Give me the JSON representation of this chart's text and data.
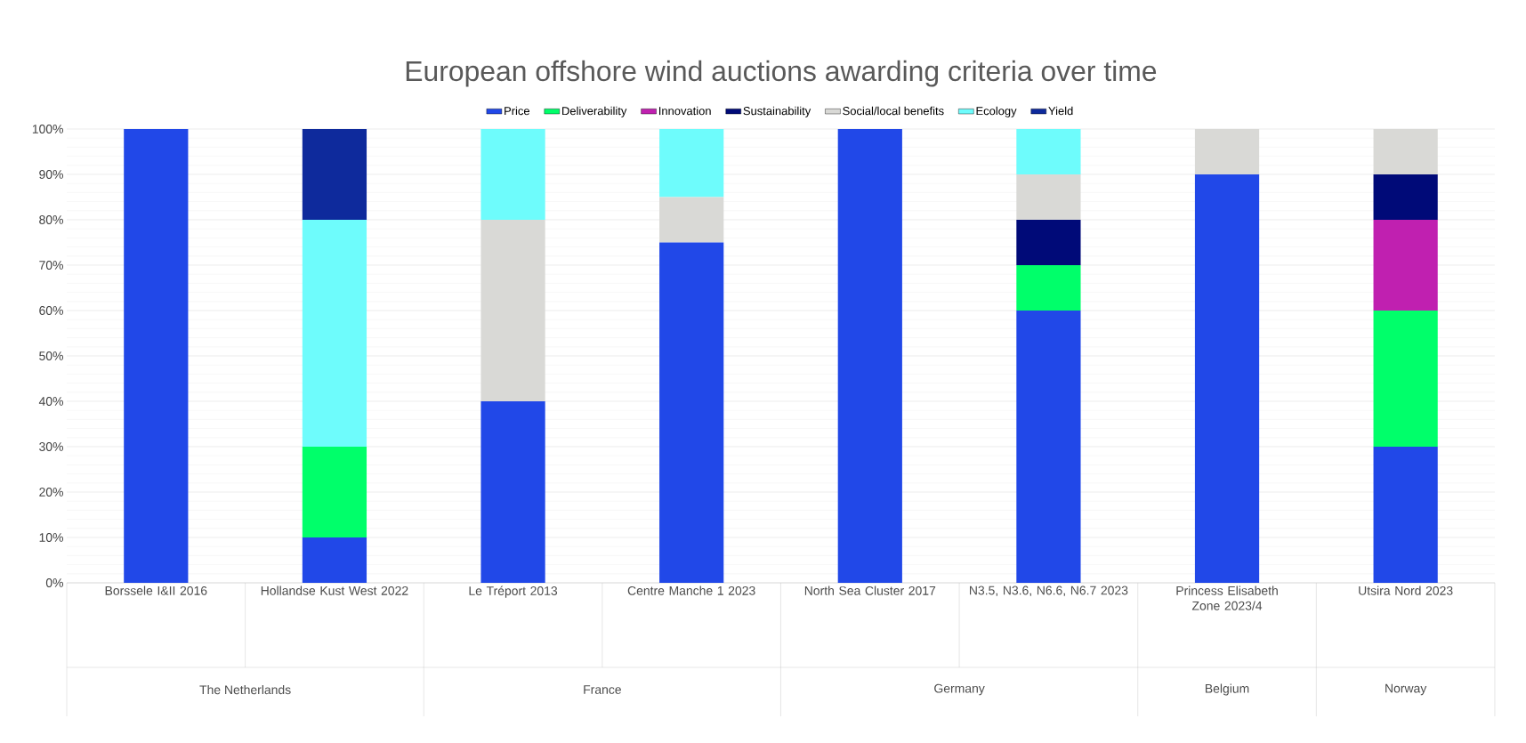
{
  "chart_data": {
    "type": "bar",
    "stacked": true,
    "title": "European offshore wind auctions awarding criteria over time",
    "categories": [
      "Borssele I&II 2016",
      "Hollandse Kust West 2022",
      "Le Tréport 2013",
      "Centre Manche 1 2023",
      "North Sea Cluster 2017",
      "N3.5, N3.6, N6.6, N6.7 2023",
      "Princess Elisabeth Zone 2023/4",
      "Utsira Nord 2023"
    ],
    "series": [
      {
        "name": "Price",
        "color": "#2148e8",
        "values": [
          100,
          10,
          40,
          75,
          100,
          60,
          90,
          30
        ]
      },
      {
        "name": "Deliverability",
        "color": "#00ff6a",
        "values": [
          0,
          20,
          0,
          0,
          0,
          10,
          0,
          30
        ]
      },
      {
        "name": "Innovation",
        "color": "#c020b0",
        "values": [
          0,
          0,
          0,
          0,
          0,
          0,
          0,
          20
        ]
      },
      {
        "name": "Sustainability",
        "color": "#000a78",
        "values": [
          0,
          0,
          0,
          0,
          0,
          10,
          0,
          10
        ]
      },
      {
        "name": "Social/local benefits",
        "color": "#d9d9d6",
        "values": [
          0,
          0,
          40,
          10,
          0,
          10,
          10,
          10
        ]
      },
      {
        "name": "Ecology",
        "color": "#6efcfc",
        "values": [
          0,
          50,
          20,
          15,
          0,
          10,
          0,
          0
        ]
      },
      {
        "name": "Yield",
        "color": "#0e2a9c",
        "values": [
          0,
          20,
          0,
          0,
          0,
          0,
          0,
          0
        ]
      }
    ],
    "ylim": [
      0,
      100
    ],
    "yticks": [
      {
        "value": 0,
        "label": "0%"
      },
      {
        "value": 10,
        "label": "10%"
      },
      {
        "value": 20,
        "label": "20%"
      },
      {
        "value": 30,
        "label": "30%"
      },
      {
        "value": 40,
        "label": "40%"
      },
      {
        "value": 50,
        "label": "50%"
      },
      {
        "value": 60,
        "label": "60%"
      },
      {
        "value": 70,
        "label": "70%"
      },
      {
        "value": 80,
        "label": "80%"
      },
      {
        "value": 90,
        "label": "90%"
      },
      {
        "value": 100,
        "label": "100%"
      }
    ],
    "grid": "y",
    "legend": "top",
    "annotations": [
      "The Netherlands",
      "France",
      "Germany",
      "Belgium",
      "Norway"
    ]
  }
}
